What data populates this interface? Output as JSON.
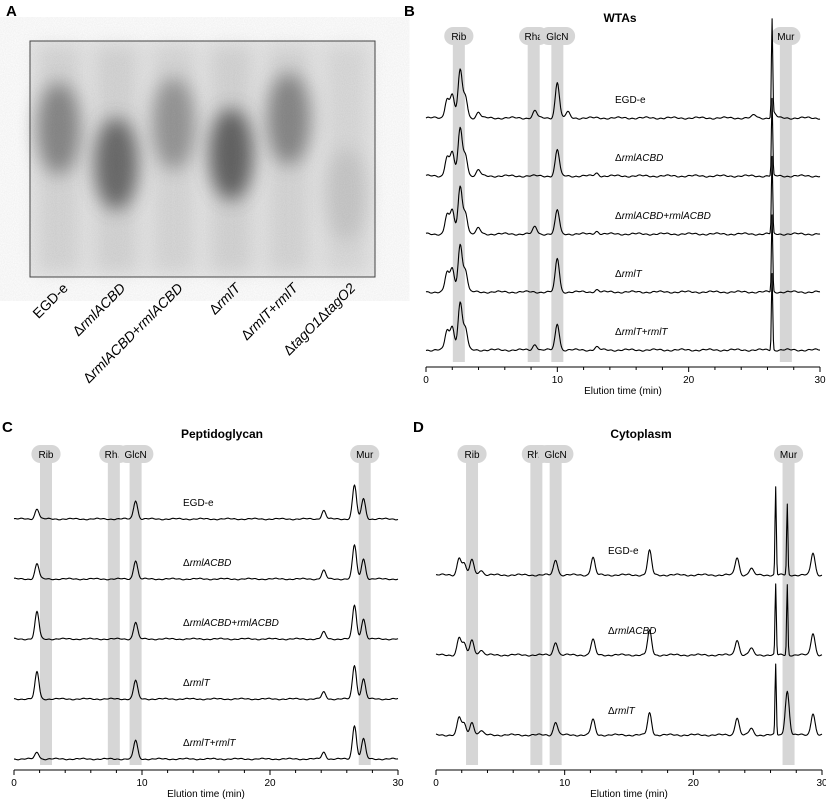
{
  "panel_labels": [
    "A",
    "B",
    "C",
    "D"
  ],
  "gel": {
    "lanes": [
      {
        "label": "EGD-e",
        "italic": [],
        "band_center": 0.37,
        "intensity": 0.55
      },
      {
        "label": "ΔrmlACBD",
        "italic": [
          "rmlACBD"
        ],
        "band_center": 0.52,
        "intensity": 0.75
      },
      {
        "label": "ΔrmlACBD+rmlACBD",
        "italic": [
          "rmlACBD"
        ],
        "band_center": 0.35,
        "intensity": 0.45
      },
      {
        "label": "ΔrmlT",
        "italic": [
          "rmlT"
        ],
        "band_center": 0.48,
        "intensity": 0.8
      },
      {
        "label": "ΔrmlT+rmlT",
        "italic": [
          "rmlT"
        ],
        "band_center": 0.33,
        "intensity": 0.55
      },
      {
        "label": "ΔtagO1ΔtagO2",
        "italic": [
          "tagO1",
          "tagO2"
        ],
        "band_center": 0.65,
        "intensity": 0.12
      }
    ]
  },
  "chart_data": [
    {
      "panel": "B",
      "type": "line",
      "title": "WTAs",
      "xlabel": "Elution time (min)",
      "xlim": [
        0,
        30
      ],
      "xticks": [
        0,
        10,
        20,
        30
      ],
      "markers": [
        {
          "label": "Rib",
          "x": 2.5
        },
        {
          "label": "Rha",
          "x": 8.2
        },
        {
          "label": "GlcN",
          "x": 10.0
        },
        {
          "label": "Mur",
          "x": 27.4
        }
      ],
      "series": [
        {
          "name": "EGD-e",
          "italic": [],
          "peaks": [
            [
              1.6,
              0.4
            ],
            [
              2.0,
              0.5
            ],
            [
              2.6,
              1.0
            ],
            [
              3.0,
              0.45
            ],
            [
              4.0,
              0.12
            ],
            [
              8.3,
              0.15
            ],
            [
              10.0,
              0.75
            ],
            [
              10.8,
              0.12
            ],
            [
              25.0,
              0.06
            ],
            [
              26.5,
              0.1
            ],
            [
              26.35,
              2.0
            ]
          ]
        },
        {
          "name": "ΔrmlACBD",
          "italic": [
            "rmlACBD"
          ],
          "peaks": [
            [
              1.6,
              0.4
            ],
            [
              2.0,
              0.5
            ],
            [
              2.6,
              1.0
            ],
            [
              3.0,
              0.45
            ],
            [
              4.0,
              0.12
            ],
            [
              10.0,
              0.55
            ],
            [
              13.0,
              0.06
            ],
            [
              26.35,
              1.6
            ]
          ]
        },
        {
          "name": "ΔrmlACBD+rmlACBD",
          "italic": [
            "rmlACBD"
          ],
          "peaks": [
            [
              1.6,
              0.4
            ],
            [
              2.0,
              0.5
            ],
            [
              2.6,
              1.0
            ],
            [
              3.0,
              0.45
            ],
            [
              4.0,
              0.12
            ],
            [
              8.3,
              0.15
            ],
            [
              10.0,
              0.5
            ],
            [
              13.0,
              0.06
            ],
            [
              26.35,
              1.6
            ]
          ]
        },
        {
          "name": "ΔrmlT",
          "italic": [
            "rmlT"
          ],
          "peaks": [
            [
              1.6,
              0.4
            ],
            [
              2.0,
              0.5
            ],
            [
              2.6,
              1.0
            ],
            [
              3.0,
              0.45
            ],
            [
              10.0,
              0.7
            ],
            [
              13.0,
              0.05
            ],
            [
              26.35,
              1.6
            ]
          ]
        },
        {
          "name": "ΔrmlT+rmlT",
          "italic": [
            "rmlT"
          ],
          "peaks": [
            [
              1.6,
              0.4
            ],
            [
              2.0,
              0.5
            ],
            [
              2.6,
              1.0
            ],
            [
              3.0,
              0.45
            ],
            [
              8.3,
              0.12
            ],
            [
              10.0,
              0.55
            ],
            [
              13.0,
              0.06
            ],
            [
              26.35,
              1.6
            ]
          ]
        }
      ]
    },
    {
      "panel": "C",
      "type": "line",
      "title": "Peptidoglycan",
      "xlabel": "Elution time (min)",
      "xlim": [
        0,
        30
      ],
      "xticks": [
        0,
        10,
        20,
        30
      ],
      "markers": [
        {
          "label": "Rib",
          "x": 2.5
        },
        {
          "label": "Rha",
          "x": 7.8
        },
        {
          "label": "GlcN",
          "x": 9.5
        },
        {
          "label": "Mur",
          "x": 27.4
        }
      ],
      "series": [
        {
          "name": "EGD-e",
          "italic": [],
          "peaks": [
            [
              1.8,
              0.3
            ],
            [
              9.5,
              0.55
            ],
            [
              24.2,
              0.25
            ],
            [
              26.6,
              1.0
            ],
            [
              27.3,
              0.6
            ]
          ]
        },
        {
          "name": "ΔrmlACBD",
          "italic": [
            "rmlACBD"
          ],
          "peaks": [
            [
              1.8,
              0.45
            ],
            [
              9.5,
              0.55
            ],
            [
              24.2,
              0.25
            ],
            [
              26.6,
              1.0
            ],
            [
              27.3,
              0.6
            ]
          ]
        },
        {
          "name": "ΔrmlACBD+rmlACBD",
          "italic": [
            "rmlACBD"
          ],
          "peaks": [
            [
              1.8,
              0.8
            ],
            [
              9.5,
              0.5
            ],
            [
              24.2,
              0.2
            ],
            [
              26.6,
              1.0
            ],
            [
              27.3,
              0.6
            ]
          ]
        },
        {
          "name": "ΔrmlT",
          "italic": [
            "rmlT"
          ],
          "peaks": [
            [
              1.8,
              0.8
            ],
            [
              9.5,
              0.55
            ],
            [
              24.2,
              0.2
            ],
            [
              26.6,
              1.0
            ],
            [
              27.3,
              0.6
            ]
          ]
        },
        {
          "name": "ΔrmlT+rmlT",
          "italic": [
            "rmlT"
          ],
          "peaks": [
            [
              1.8,
              0.2
            ],
            [
              9.5,
              0.55
            ],
            [
              24.2,
              0.2
            ],
            [
              26.6,
              1.0
            ],
            [
              27.3,
              0.6
            ]
          ]
        }
      ]
    },
    {
      "panel": "D",
      "type": "line",
      "title": "Cytoplasm",
      "xlabel": "Elution time (min)",
      "xlim": [
        0,
        30
      ],
      "xticks": [
        0,
        10,
        20,
        30
      ],
      "markers": [
        {
          "label": "Rib",
          "x": 2.8
        },
        {
          "label": "Rha",
          "x": 7.8
        },
        {
          "label": "GlcN",
          "x": 9.3
        },
        {
          "label": "Mur",
          "x": 27.4
        }
      ],
      "series": [
        {
          "name": "EGD-e",
          "italic": [],
          "peaks": [
            [
              1.8,
              0.4
            ],
            [
              2.2,
              0.25
            ],
            [
              2.8,
              0.35
            ],
            [
              3.5,
              0.12
            ],
            [
              9.3,
              0.35
            ],
            [
              12.2,
              0.4
            ],
            [
              16.6,
              0.55
            ],
            [
              23.4,
              0.4
            ],
            [
              24.5,
              0.15
            ],
            [
              26.4,
              2.0
            ],
            [
              27.3,
              1.6
            ],
            [
              29.3,
              0.5
            ]
          ]
        },
        {
          "name": "ΔrmlACBD",
          "italic": [
            "rmlACBD"
          ],
          "peaks": [
            [
              1.8,
              0.4
            ],
            [
              2.2,
              0.25
            ],
            [
              2.8,
              0.35
            ],
            [
              3.5,
              0.12
            ],
            [
              9.3,
              0.3
            ],
            [
              12.2,
              0.35
            ],
            [
              16.6,
              0.55
            ],
            [
              23.4,
              0.35
            ],
            [
              24.5,
              0.15
            ],
            [
              26.4,
              1.6
            ],
            [
              27.3,
              1.6
            ],
            [
              29.3,
              0.5
            ]
          ]
        },
        {
          "name": "ΔrmlT",
          "italic": [
            "rmlT"
          ],
          "peaks": [
            [
              1.8,
              0.4
            ],
            [
              2.2,
              0.25
            ],
            [
              2.8,
              0.3
            ],
            [
              3.5,
              0.1
            ],
            [
              9.3,
              0.3
            ],
            [
              12.2,
              0.35
            ],
            [
              16.6,
              0.5
            ],
            [
              23.4,
              0.4
            ],
            [
              24.5,
              0.15
            ],
            [
              26.4,
              1.6
            ],
            [
              27.3,
              1.0
            ],
            [
              29.3,
              0.5
            ]
          ]
        }
      ]
    }
  ]
}
